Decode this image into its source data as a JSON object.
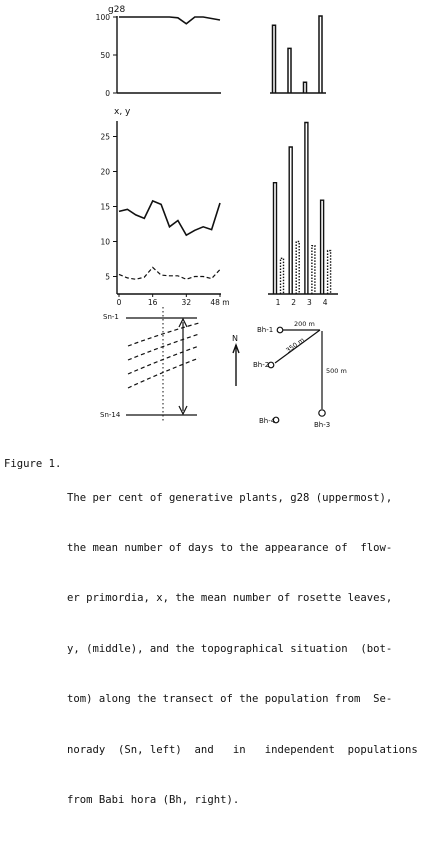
{
  "chart_data": [
    {
      "type": "line",
      "panel": "upper-left",
      "ylabel": "g28",
      "yticks": [
        "100",
        "50",
        "0"
      ],
      "ylim": [
        0,
        100
      ],
      "x": [
        0,
        8,
        16,
        24,
        28,
        32,
        36,
        40,
        48
      ],
      "series": [
        {
          "values": [
            100,
            100,
            100,
            100,
            99,
            91,
            100,
            100,
            96
          ]
        }
      ]
    },
    {
      "type": "bar",
      "panel": "upper-right",
      "categories": [
        "1",
        "2",
        "3",
        "4"
      ],
      "ylim": [
        0,
        100
      ],
      "values": [
        88,
        58,
        14,
        100
      ]
    },
    {
      "type": "line",
      "panel": "middle-left",
      "ylabel": "x, y",
      "yticks": [
        "25",
        "20",
        "15",
        "10",
        "5"
      ],
      "xticks": [
        "0",
        "16",
        "32",
        "48 m"
      ],
      "ylim": [
        2.5,
        27.5
      ],
      "x": [
        0,
        4,
        8,
        12,
        16,
        20,
        24,
        28,
        32,
        36,
        40,
        44,
        48
      ],
      "series": [
        {
          "style": "solid",
          "values": [
            14.3,
            14.6,
            13.8,
            13.3,
            15.8,
            15.3,
            12.1,
            13.0,
            10.9,
            11.6,
            12.1,
            11.7,
            15.5
          ]
        },
        {
          "style": "dashed",
          "values": [
            5.3,
            4.8,
            4.6,
            4.9,
            6.3,
            5.2,
            5.1,
            5.1,
            4.6,
            5.0,
            5.0,
            4.7,
            6.0
          ]
        }
      ]
    },
    {
      "type": "bar",
      "panel": "middle-right",
      "categories": [
        "1",
        "2",
        "3",
        "4"
      ],
      "ylim": [
        2.5,
        27.5
      ],
      "series": [
        {
          "style": "solid",
          "values": [
            18.4,
            23.5,
            27.0,
            15.9
          ]
        },
        {
          "style": "dotted",
          "values": [
            7.6,
            10.0,
            9.4,
            8.7
          ]
        }
      ]
    }
  ],
  "transect": {
    "top_label": "Sn-1",
    "bottom_label": "Sn-14"
  },
  "map": {
    "north": "N",
    "sites": [
      "Bh-1",
      "Bh-2",
      "Bh-3",
      "Bh-4"
    ],
    "distances": [
      "200 m",
      "350 m",
      "500 m"
    ]
  },
  "caption": {
    "lead": "Figure 1.",
    "lines": [
      "The per cent of generative plants, g28 (uppermost),",
      "the mean number of days to the appearance of  flow-",
      "er primordia, x, the mean number of rosette leaves,",
      "y, (middle), and the topographical situation  (bot-",
      "tom) along the transect of the population from  Se-",
      "norady  (Sn, left)  and   in   independent  populations",
      "from Babi hora (Bh, right)."
    ]
  },
  "colors": {
    "ink": "#111111",
    "background": "#ffffff"
  }
}
